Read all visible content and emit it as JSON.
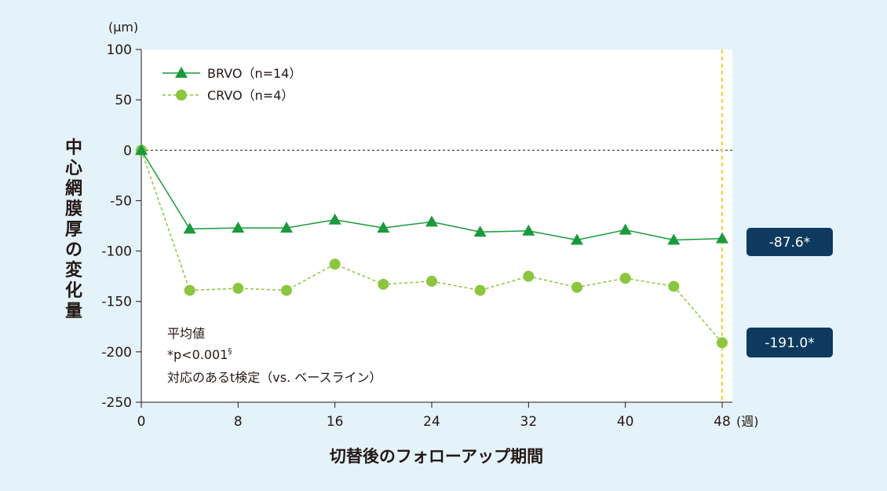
{
  "chart_data": {
    "type": "line",
    "unit": "(μm)",
    "ylabel": "中心網膜厚の変化量",
    "xlabel": "切替後のフォローアップ期間",
    "x_unit": "(週)",
    "x": [
      0,
      4,
      8,
      12,
      16,
      20,
      24,
      28,
      32,
      36,
      40,
      44,
      48
    ],
    "x_ticks": [
      0,
      8,
      16,
      24,
      32,
      40,
      48
    ],
    "y_ticks": [
      100,
      50,
      0,
      -50,
      -100,
      -150,
      -200,
      -250
    ],
    "ylim": [
      -250,
      100
    ],
    "xlim": [
      0,
      48
    ],
    "series": [
      {
        "name": "BRVO（n=14）",
        "marker": "triangle",
        "line_style": "solid",
        "color": "#1a9a3c",
        "values": [
          0,
          -78,
          -77,
          -77,
          -69,
          -77,
          -71,
          -81,
          -80,
          -89,
          -79,
          -89,
          -87.6
        ]
      },
      {
        "name": "CRVO（n=4）",
        "marker": "circle",
        "line_style": "dashed",
        "color": "#8cc63f",
        "values": [
          0,
          -139,
          -137,
          -139,
          -113,
          -133,
          -130,
          -139,
          -125,
          -136,
          -127,
          -135,
          -191.0
        ]
      }
    ],
    "callouts": [
      "-87.6*",
      "-191.0*"
    ],
    "notes": [
      "平均値",
      "*p<0.001",
      "対応のあるt検定（vs. ベースライン）"
    ],
    "note_superscript": "§",
    "grid": false,
    "reference_line_y": 0,
    "highlight_x": 48,
    "legend_position": "top-left",
    "colors": {
      "background": "#e4f2f9",
      "plot_area": "#ffffff",
      "callout": "#0d3a5e",
      "highlight_line": "#f5d22a",
      "text": "#231815"
    }
  }
}
